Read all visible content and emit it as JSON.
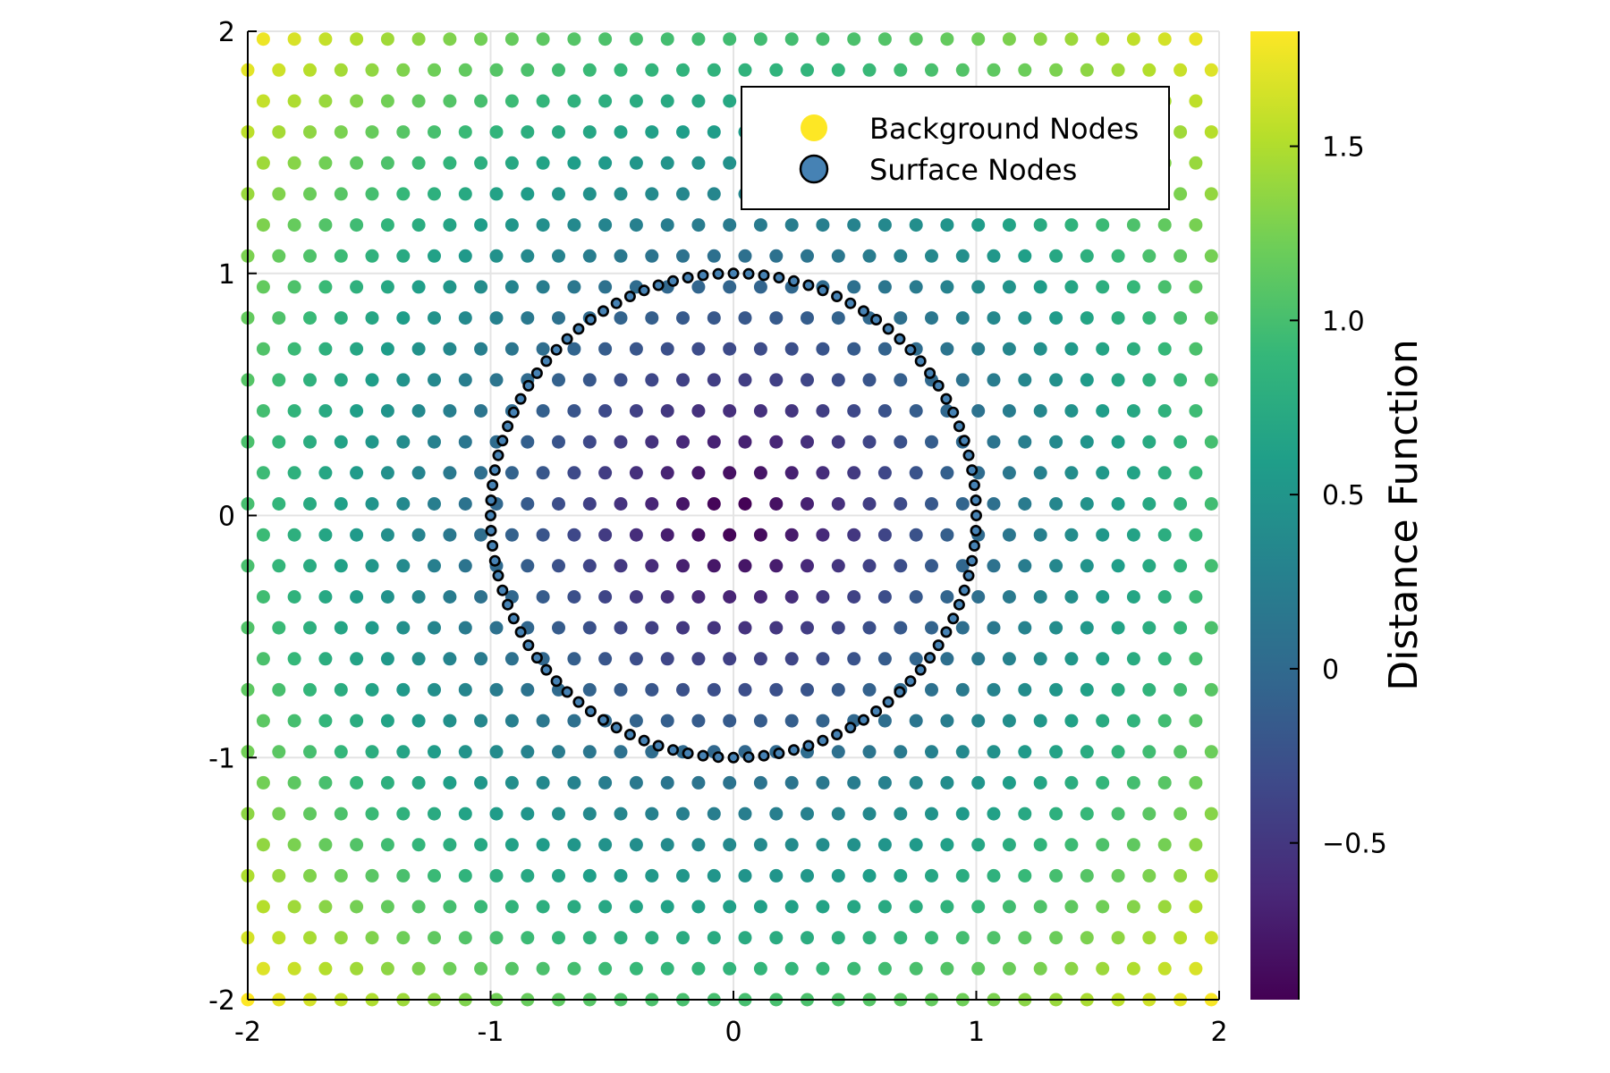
{
  "chart_data": {
    "type": "scatter",
    "title": "",
    "xlabel": "",
    "ylabel": "",
    "xlim": [
      -2,
      2
    ],
    "ylim": [
      -2,
      2
    ],
    "x_ticks": [
      -2,
      -1,
      0,
      1,
      2
    ],
    "y_ticks": [
      -2,
      -1,
      0,
      1,
      2
    ],
    "x_tick_labels": [
      "-2",
      "-1",
      "0",
      "1",
      "2"
    ],
    "y_tick_labels": [
      "-2",
      "-1",
      "0",
      "1",
      "2"
    ],
    "grid": true,
    "legend_position": "top-right",
    "series": [
      {
        "name": "Background Nodes",
        "kind": "grid",
        "x_start": -2.0,
        "x_step": 0.128,
        "count_x": 32,
        "y_start": -2.0,
        "y_step": 0.128,
        "count_y": 32,
        "alternate_row_x_offset": 0.064,
        "value": "distance function = sqrt(x^2 + y^2) - 1",
        "legend_color": "#FDE725"
      },
      {
        "name": "Surface Nodes",
        "kind": "circle",
        "center": [
          0,
          0
        ],
        "radius": 1.0,
        "count": 100,
        "color": "#4682B4",
        "edge_color": "#000000"
      }
    ],
    "colorbar": {
      "label": "Distance Function",
      "range": [
        -0.95,
        1.83
      ],
      "ticks": [
        -0.5,
        0,
        0.5,
        1.0,
        1.5
      ],
      "tick_labels": [
        "−0.5",
        "0",
        "0.5",
        "1.0",
        "1.5"
      ],
      "colormap": "viridis"
    }
  }
}
